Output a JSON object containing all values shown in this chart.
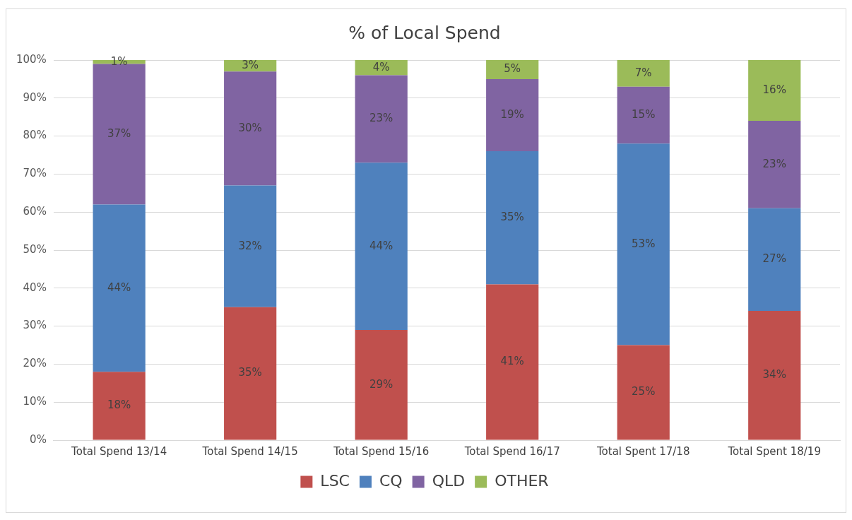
{
  "chart_data": {
    "type": "bar",
    "title": "% of Local Spend",
    "stacked": true,
    "legend": "bottom",
    "grid": "y",
    "categories": [
      "Total Spend 13/14",
      "Total Spend 14/15",
      "Total Spend 15/16",
      "Total Spend 16/17",
      "Total Spent 17/18",
      "Total Spent 18/19"
    ],
    "series": [
      {
        "name": "LSC",
        "color": "#c0504d",
        "values": [
          18,
          35,
          29,
          41,
          25,
          34
        ],
        "value_labels": [
          "18%",
          "35%",
          "29%",
          "41%",
          "25%",
          "34%"
        ]
      },
      {
        "name": "CQ",
        "color": "#4f81bd",
        "values": [
          44,
          32,
          44,
          35,
          53,
          27
        ],
        "value_labels": [
          "44%",
          "32%",
          "44%",
          "35%",
          "53%",
          "27%"
        ]
      },
      {
        "name": "QLD",
        "color": "#8064a2",
        "values": [
          37,
          30,
          23,
          19,
          15,
          23
        ],
        "value_labels": [
          "37%",
          "30%",
          "23%",
          "19%",
          "15%",
          "23%"
        ]
      },
      {
        "name": "OTHER",
        "color": "#9bbb59",
        "values": [
          1,
          3,
          4,
          5,
          7,
          16
        ],
        "value_labels": [
          "1%",
          "3%",
          "4%",
          "5%",
          "7%",
          "16%"
        ]
      }
    ],
    "ylim": [
      0,
      100
    ],
    "yticks": [
      {
        "value": 0,
        "label": "0%"
      },
      {
        "value": 10,
        "label": "10%"
      },
      {
        "value": 20,
        "label": "20%"
      },
      {
        "value": 30,
        "label": "30%"
      },
      {
        "value": 40,
        "label": "40%"
      },
      {
        "value": 50,
        "label": "50%"
      },
      {
        "value": 60,
        "label": "60%"
      },
      {
        "value": 70,
        "label": "70%"
      },
      {
        "value": 80,
        "label": "80%"
      },
      {
        "value": 90,
        "label": "90%"
      },
      {
        "value": 100,
        "label": "100%"
      }
    ]
  }
}
